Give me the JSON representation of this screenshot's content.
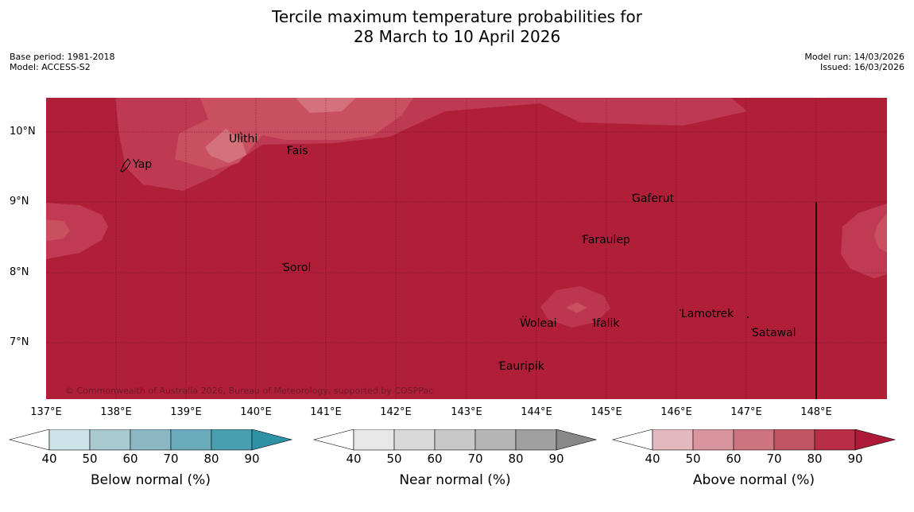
{
  "title": {
    "line1": "Tercile maximum temperature probabilities for",
    "line2": "28 March to 10 April 2026"
  },
  "meta": {
    "base_period": "Base period: 1981-2018",
    "model": "Model: ACCESS-S2",
    "model_run": "Model run: 14/03/2026",
    "issued": "Issued: 16/03/2026"
  },
  "map": {
    "background_color": "#b01e38",
    "lat_labels": [
      "10°N",
      "9°N",
      "8°N",
      "7°N"
    ],
    "lon_labels": [
      "137°E",
      "138°E",
      "139°E",
      "140°E",
      "141°E",
      "142°E",
      "143°E",
      "144°E",
      "145°E",
      "146°E",
      "147°E",
      "148°E"
    ],
    "places": [
      "Ulithi",
      "Fais",
      "Yap",
      "Gaferut",
      "Faraulep",
      "Sorol",
      "Lamotrek",
      "Woleai",
      "Ifalik",
      "Satawal",
      "Eauripik"
    ],
    "copyright": "© Commonwealth of Australia 2026, Bureau of Meteorology, supported by COSPPac"
  },
  "legend": {
    "ticks": [
      "40",
      "50",
      "60",
      "70",
      "80",
      "90"
    ],
    "bars": [
      {
        "title": "Below normal (%)",
        "colors": [
          "#cde3ea",
          "#a9c9d1",
          "#8bb8c4",
          "#6aacbc",
          "#479fb0",
          "#2f91a6"
        ]
      },
      {
        "title": "Near normal (%)",
        "colors": [
          "#e7e7e7",
          "#d9d9d9",
          "#c8c8c8",
          "#b5b5b5",
          "#a0a0a0",
          "#888888"
        ]
      },
      {
        "title": "Above normal (%)",
        "colors": [
          "#e3b9bf",
          "#d8959e",
          "#cd747f",
          "#c25563",
          "#b92e47",
          "#ad1a38"
        ]
      }
    ]
  }
}
